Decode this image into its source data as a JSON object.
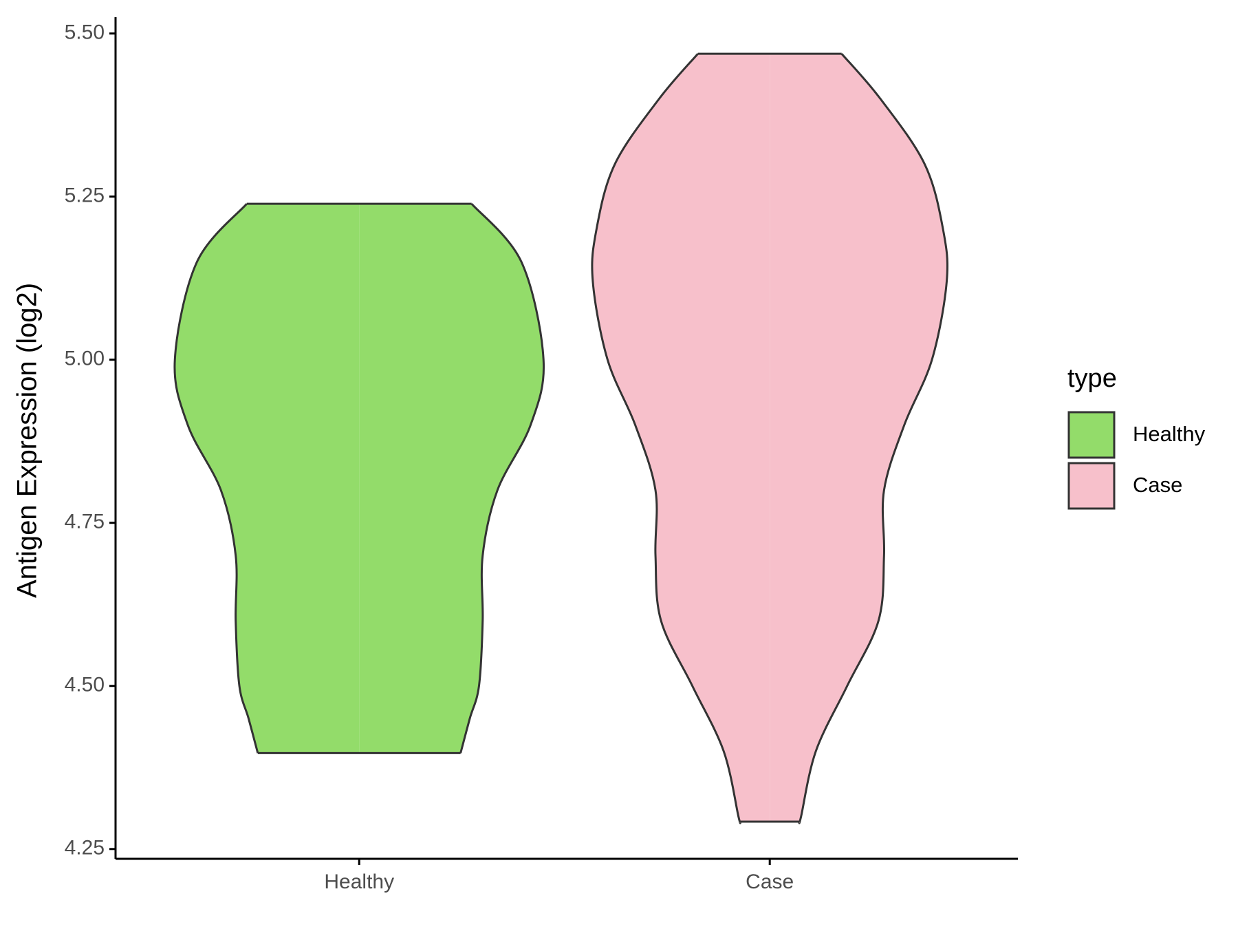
{
  "chart_data": {
    "type": "violin",
    "y_label": "Antigen Expression (log2)",
    "categories": [
      "Healthy",
      "Case"
    ],
    "ylim": [
      4.235,
      5.525
    ],
    "yticks": [
      {
        "value": 4.25,
        "label": "4.25"
      },
      {
        "value": 4.5,
        "label": "4.50"
      },
      4.75,
      {
        "value": 5.0,
        "label": "5.00"
      },
      5.25,
      {
        "value": 5.5,
        "label": "5.50"
      }
    ],
    "legend_title": "type",
    "legend_position": "right",
    "series": [
      {
        "name": "Healthy",
        "color": "#93dc6a",
        "y": [
          5.239,
          5.15,
          5.0,
          4.9,
          4.8,
          4.7,
          4.6,
          4.5,
          4.45,
          4.397
        ],
        "density": [
          0.61,
          0.88,
          1.0,
          0.93,
          0.75,
          0.67,
          0.67,
          0.65,
          0.6,
          0.55
        ]
      },
      {
        "name": "Case",
        "color": "#f7c0cb",
        "y": [
          5.469,
          5.4,
          5.3,
          5.2,
          5.12,
          5.0,
          4.9,
          4.8,
          4.7,
          4.6,
          4.5,
          4.4,
          4.3,
          4.292
        ],
        "density": [
          0.39,
          0.6,
          0.84,
          0.94,
          0.96,
          0.88,
          0.73,
          0.62,
          0.62,
          0.59,
          0.42,
          0.25,
          0.17,
          0.16
        ]
      }
    ]
  }
}
